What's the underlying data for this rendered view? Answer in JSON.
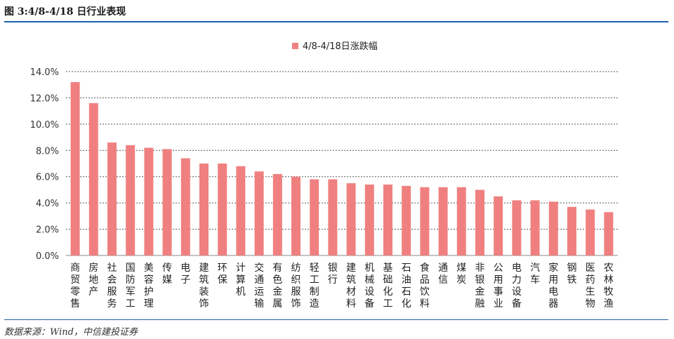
{
  "figure_title": "图 3:4/8-4/18 日行业表现",
  "source_note": "数据来源：Wind，中信建投证券",
  "chart_data": {
    "type": "bar",
    "legend": "4/8-4/18日涨跌幅",
    "legend_position": "top-center",
    "bar_color": "#f08080",
    "grid": true,
    "ylim": [
      0,
      14
    ],
    "yticks": [
      "0.0%",
      "2.0%",
      "4.0%",
      "6.0%",
      "8.0%",
      "10.0%",
      "12.0%",
      "14.0%"
    ],
    "categories": [
      "商贸零售",
      "房地产",
      "社会服务",
      "国防军工",
      "美容护理",
      "传媒",
      "电子",
      "建筑装饰",
      "环保",
      "计算机",
      "交通运输",
      "有色金属",
      "纺织服饰",
      "轻工制造",
      "银行",
      "建筑材料",
      "机械设备",
      "基础化工",
      "石油石化",
      "食品饮料",
      "通信",
      "煤炭",
      "非银金融",
      "公用事业",
      "电力设备",
      "汽车",
      "家用电器",
      "钢铁",
      "医药生物",
      "农林牧渔"
    ],
    "values": [
      13.2,
      11.6,
      8.6,
      8.4,
      8.2,
      8.1,
      7.4,
      7.0,
      7.0,
      6.8,
      6.4,
      6.2,
      6.0,
      5.8,
      5.8,
      5.5,
      5.4,
      5.4,
      5.3,
      5.2,
      5.2,
      5.2,
      5.0,
      4.5,
      4.2,
      4.2,
      4.1,
      3.7,
      3.5,
      3.3
    ]
  }
}
